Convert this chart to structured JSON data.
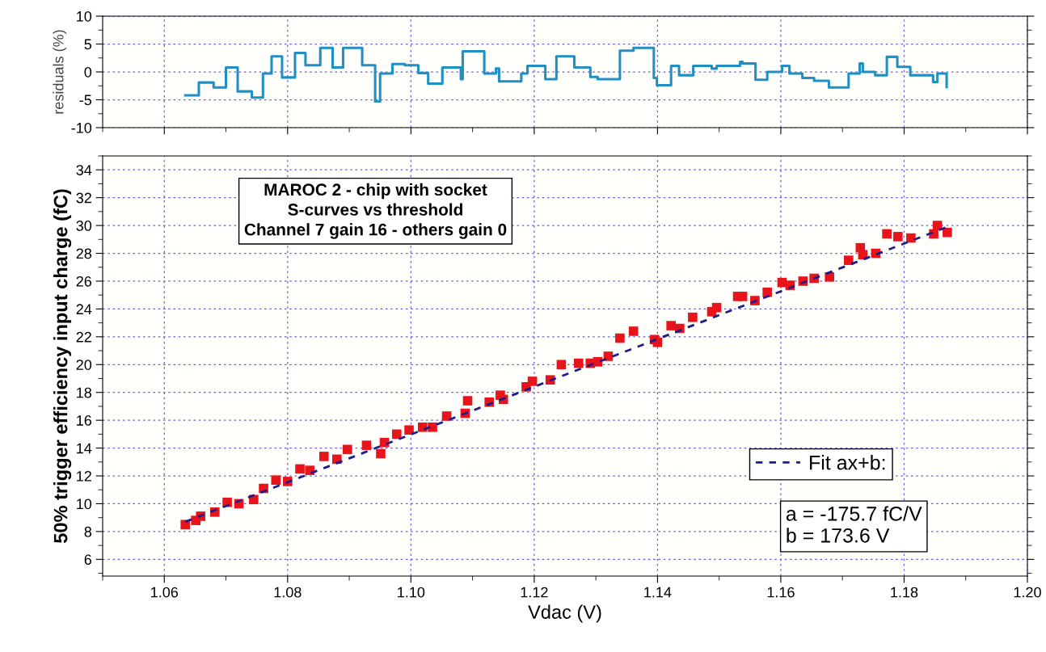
{
  "chart_data": [
    {
      "type": "step",
      "ylabel": "residuals (%)",
      "xlim": [
        1.05,
        1.2
      ],
      "ylim": [
        -10,
        10
      ],
      "yticks": [
        -10,
        -5,
        0,
        5,
        10
      ],
      "xticks": [
        1.06,
        1.08,
        1.1,
        1.12,
        1.14,
        1.16,
        1.18,
        1.2
      ],
      "tick_labels": "y",
      "grid": true,
      "series": [
        {
          "color": "#1f8fc4",
          "x": [
            1.0634,
            1.0656,
            1.068,
            1.07,
            1.0719,
            1.0742,
            1.076,
            1.0774,
            1.0791,
            1.0812,
            1.0829,
            1.0853,
            1.0873,
            1.089,
            1.0921,
            1.0942,
            1.095,
            1.097,
            1.099,
            1.1012,
            1.1028,
            1.1051,
            1.1081,
            1.1084,
            1.1119,
            1.1138,
            1.1143,
            1.1179,
            1.1189,
            1.1218,
            1.1236,
            1.1265,
            1.1273,
            1.1291,
            1.1303,
            1.1339,
            1.1361,
            1.1394,
            1.1399,
            1.1422,
            1.1435,
            1.1458,
            1.1488,
            1.1496,
            1.1534,
            1.1538,
            1.1559,
            1.1578,
            1.1602,
            1.1614,
            1.1635,
            1.1654,
            1.1678,
            1.171,
            1.1728,
            1.1733,
            1.1753,
            1.1772,
            1.1789,
            1.181,
            1.1847,
            1.1854,
            1.1869
          ],
          "values": [
            -4.2,
            -1.9,
            -2.8,
            0.8,
            -3.5,
            -4.6,
            -0.3,
            2.8,
            -1.0,
            3.4,
            1.2,
            4.3,
            0.8,
            4.3,
            1.2,
            -5.3,
            -0.3,
            1.4,
            1.2,
            -0.2,
            -2.1,
            0.8,
            -1.3,
            3.7,
            -0.3,
            0.6,
            -1.7,
            -0.3,
            1.1,
            -1.3,
            2.8,
            0.8,
            0.8,
            -0.9,
            -1.3,
            3.8,
            4.3,
            -1.1,
            -2.4,
            1.1,
            -0.6,
            1.1,
            0.6,
            1.1,
            1.8,
            1.5,
            -1.4,
            0.0,
            1.1,
            -0.3,
            -1.1,
            -1.6,
            -2.8,
            -0.3,
            1.5,
            0.0,
            -0.6,
            2.7,
            0.9,
            -0.6,
            -1.8,
            -0.3,
            -2.7
          ]
        }
      ]
    },
    {
      "type": "scatter",
      "title": "MAROC 2 - chip with socket\nS-curves vs threshold\nChannel 7 gain 16 - others gain 0",
      "xlabel": "Vdac (V)",
      "ylabel": "50% trigger efficiency input charge (fC)",
      "xlim": [
        1.05,
        1.2
      ],
      "ylim": [
        4.8,
        35
      ],
      "xticks": [
        1.06,
        1.08,
        {
          "value": 1.1,
          "label": "1.10"
        },
        1.12,
        1.14,
        1.16,
        1.18,
        {
          "value": 1.2,
          "label": "1.20"
        }
      ],
      "yticks": [
        6,
        8,
        10,
        12,
        14,
        16,
        18,
        20,
        22,
        24,
        26,
        28,
        30,
        32,
        34
      ],
      "grid": true,
      "legend": "bottom right",
      "marker": "square",
      "annotations": [
        "a = -175.7 fC/V",
        "b = 173.6 V"
      ],
      "series": [
        {
          "color": "#e8141c",
          "x": [
            1.0634,
            1.0651,
            1.0659,
            1.0682,
            1.0702,
            1.0721,
            1.0745,
            1.0761,
            1.0781,
            1.08,
            1.082,
            1.0836,
            1.0859,
            1.088,
            1.0897,
            1.0928,
            1.0951,
            1.0957,
            1.0977,
            1.0997,
            1.1019,
            1.1035,
            1.1058,
            1.1088,
            1.1092,
            1.1127,
            1.1145,
            1.115,
            1.1187,
            1.1197,
            1.1226,
            1.1244,
            1.1272,
            1.1291,
            1.1303,
            1.132,
            1.1339,
            1.1361,
            1.1395,
            1.14,
            1.1422,
            1.1436,
            1.1457,
            1.1488,
            1.1496,
            1.153,
            1.1538,
            1.1558,
            1.1578,
            1.1602,
            1.1615,
            1.1636,
            1.1654,
            1.1679,
            1.171,
            1.1729,
            1.1733,
            1.1754,
            1.1772,
            1.179,
            1.1811,
            1.1848,
            1.1854,
            1.187
          ],
          "values": [
            8.5,
            8.8,
            9.1,
            9.4,
            10.1,
            10.0,
            10.3,
            11.1,
            11.7,
            11.6,
            12.5,
            12.4,
            13.4,
            13.2,
            13.9,
            14.2,
            13.6,
            14.4,
            15.0,
            15.3,
            15.5,
            15.5,
            16.3,
            16.5,
            17.4,
            17.3,
            17.8,
            17.5,
            18.4,
            18.8,
            18.9,
            20.0,
            20.1,
            20.1,
            20.2,
            20.6,
            21.9,
            22.4,
            21.8,
            21.6,
            22.8,
            22.6,
            23.4,
            23.8,
            24.1,
            24.9,
            24.9,
            24.6,
            25.2,
            25.9,
            25.7,
            26.0,
            26.2,
            26.3,
            27.5,
            28.4,
            27.9,
            28.0,
            29.4,
            29.2,
            29.1,
            29.4,
            30.0,
            29.5
          ]
        },
        {
          "type": "line",
          "name": "Fit ax+b:",
          "color": "#1c1c8c",
          "line_style": "dashed",
          "marker": "none",
          "x": [
            1.0634,
            1.187
          ],
          "values": [
            8.7,
            29.9
          ]
        }
      ]
    }
  ]
}
